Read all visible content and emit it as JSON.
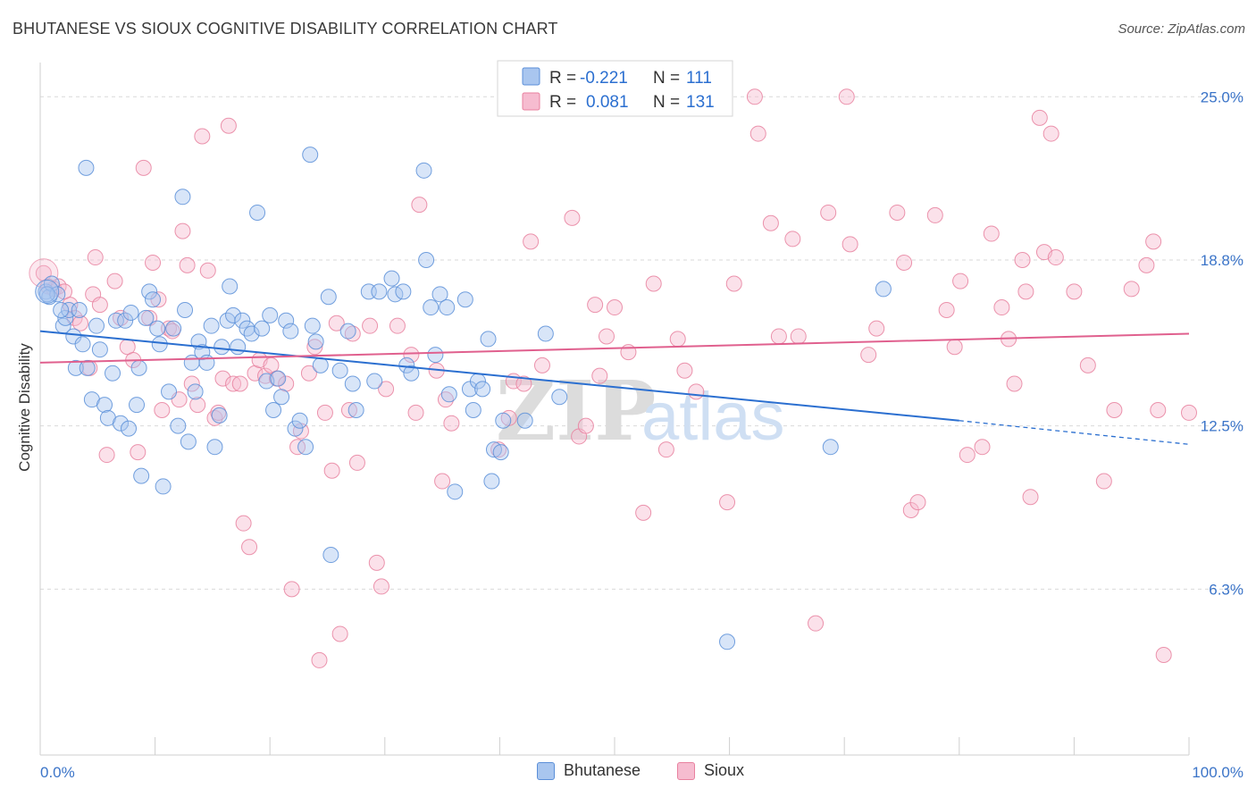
{
  "header": {
    "title": "BHUTANESE VS SIOUX COGNITIVE DISABILITY CORRELATION CHART",
    "source": "Source: ZipAtlas.com"
  },
  "legend": {
    "rows": [
      {
        "r_label": "R =",
        "r_value": "-0.221",
        "n_label": "N =",
        "n_value": "111"
      },
      {
        "r_label": "R =",
        "r_value": "0.081",
        "n_label": "N =",
        "n_value": "131"
      }
    ]
  },
  "watermark": {
    "part1": "ZIP",
    "part2": "atlas"
  },
  "colors": {
    "blue_fill": "#a9c6ef",
    "blue_stroke": "#5b8fd8",
    "blue_line": "#2b6fd0",
    "pink_fill": "#f6bcd0",
    "pink_stroke": "#e8819f",
    "pink_line": "#e0608e",
    "tick_text": "#3b74c8",
    "grid": "#d9d9d9"
  },
  "chart_data": {
    "type": "scatter",
    "title": "BHUTANESE VS SIOUX COGNITIVE DISABILITY CORRELATION CHART",
    "xlabel": "",
    "ylabel": "Cognitive Disability",
    "xlim": [
      0,
      100
    ],
    "ylim": [
      0,
      26.3
    ],
    "x_tick_labels": [
      "0.0%",
      "100.0%"
    ],
    "y_ticks": [
      {
        "value": 6.3,
        "label": "6.3%"
      },
      {
        "value": 12.5,
        "label": "12.5%"
      },
      {
        "value": 18.8,
        "label": "18.8%"
      },
      {
        "value": 25.0,
        "label": "25.0%"
      }
    ],
    "grid": "horizontal dashed",
    "legend_position": "top-center",
    "series": [
      {
        "name": "Bhutanese",
        "color": "#5b8fd8",
        "r": -0.221,
        "n": 111,
        "trend": {
          "x0": 0,
          "y0": 16.1,
          "x1": 80,
          "y1": 12.7,
          "dashed_to_x": 100,
          "dashed_to_y": 11.8
        },
        "points": [
          [
            0.5,
            17.6
          ],
          [
            0.8,
            17.4
          ],
          [
            1.0,
            17.9
          ],
          [
            1.5,
            17.5
          ],
          [
            2.0,
            16.3
          ],
          [
            2.2,
            16.6
          ],
          [
            2.5,
            16.9
          ],
          [
            2.9,
            15.9
          ],
          [
            3.1,
            14.7
          ],
          [
            3.4,
            16.9
          ],
          [
            3.7,
            15.6
          ],
          [
            4.1,
            14.7
          ],
          [
            4.5,
            13.5
          ],
          [
            4.9,
            16.3
          ],
          [
            5.2,
            15.4
          ],
          [
            5.6,
            13.3
          ],
          [
            5.9,
            12.8
          ],
          [
            6.3,
            14.5
          ],
          [
            6.6,
            16.5
          ],
          [
            7.0,
            12.6
          ],
          [
            7.4,
            16.5
          ],
          [
            7.7,
            12.4
          ],
          [
            7.9,
            16.8
          ],
          [
            8.4,
            13.3
          ],
          [
            8.6,
            14.7
          ],
          [
            8.8,
            10.6
          ],
          [
            9.2,
            16.6
          ],
          [
            9.5,
            17.6
          ],
          [
            9.8,
            17.3
          ],
          [
            10.2,
            16.2
          ],
          [
            10.4,
            15.6
          ],
          [
            10.7,
            10.2
          ],
          [
            11.2,
            13.8
          ],
          [
            11.6,
            16.2
          ],
          [
            12.0,
            12.5
          ],
          [
            12.4,
            21.2
          ],
          [
            12.6,
            16.9
          ],
          [
            12.9,
            11.9
          ],
          [
            13.2,
            14.9
          ],
          [
            13.5,
            13.8
          ],
          [
            13.8,
            15.7
          ],
          [
            14.1,
            15.3
          ],
          [
            14.5,
            14.9
          ],
          [
            14.9,
            16.3
          ],
          [
            15.2,
            11.7
          ],
          [
            15.6,
            12.9
          ],
          [
            15.8,
            15.5
          ],
          [
            16.3,
            16.5
          ],
          [
            16.5,
            17.8
          ],
          [
            16.8,
            16.7
          ],
          [
            17.2,
            15.5
          ],
          [
            17.6,
            16.5
          ],
          [
            18.0,
            16.2
          ],
          [
            18.4,
            16.0
          ],
          [
            18.9,
            20.6
          ],
          [
            19.3,
            16.2
          ],
          [
            19.7,
            14.2
          ],
          [
            20.0,
            16.7
          ],
          [
            20.3,
            13.1
          ],
          [
            20.7,
            14.3
          ],
          [
            21.0,
            13.6
          ],
          [
            21.4,
            16.5
          ],
          [
            21.8,
            16.1
          ],
          [
            22.2,
            12.4
          ],
          [
            22.6,
            12.7
          ],
          [
            23.1,
            11.7
          ],
          [
            23.5,
            22.8
          ],
          [
            23.7,
            16.3
          ],
          [
            24.0,
            15.7
          ],
          [
            24.4,
            14.8
          ],
          [
            25.1,
            17.4
          ],
          [
            25.3,
            7.6
          ],
          [
            26.1,
            14.6
          ],
          [
            26.8,
            16.1
          ],
          [
            27.2,
            14.1
          ],
          [
            27.5,
            13.1
          ],
          [
            28.6,
            17.6
          ],
          [
            29.1,
            14.2
          ],
          [
            29.5,
            17.6
          ],
          [
            30.6,
            18.1
          ],
          [
            30.9,
            17.5
          ],
          [
            31.6,
            17.6
          ],
          [
            31.9,
            14.8
          ],
          [
            32.3,
            14.5
          ],
          [
            33.4,
            22.2
          ],
          [
            33.6,
            18.8
          ],
          [
            34.0,
            17.0
          ],
          [
            34.4,
            15.2
          ],
          [
            34.8,
            17.5
          ],
          [
            35.4,
            17.0
          ],
          [
            35.6,
            13.7
          ],
          [
            36.1,
            10.0
          ],
          [
            37.0,
            17.3
          ],
          [
            37.4,
            13.9
          ],
          [
            37.7,
            13.1
          ],
          [
            38.1,
            14.2
          ],
          [
            38.5,
            13.9
          ],
          [
            39.0,
            15.8
          ],
          [
            39.3,
            10.4
          ],
          [
            39.5,
            11.6
          ],
          [
            40.1,
            11.5
          ],
          [
            40.3,
            12.7
          ],
          [
            42.2,
            12.7
          ],
          [
            44.0,
            16.0
          ],
          [
            45.2,
            13.6
          ],
          [
            59.8,
            4.3
          ],
          [
            68.8,
            11.7
          ],
          [
            73.4,
            17.7
          ],
          [
            4.0,
            22.3
          ],
          [
            0.6,
            17.5
          ],
          [
            1.8,
            16.9
          ]
        ]
      },
      {
        "name": "Sioux",
        "color": "#e8819f",
        "r": 0.081,
        "n": 131,
        "trend": {
          "x0": 0,
          "y0": 14.9,
          "x1": 100,
          "y1": 16.0
        },
        "points": [
          [
            0.3,
            18.3
          ],
          [
            0.7,
            17.8
          ],
          [
            1.2,
            17.7
          ],
          [
            1.6,
            17.8
          ],
          [
            2.1,
            17.6
          ],
          [
            2.6,
            17.1
          ],
          [
            3.0,
            16.6
          ],
          [
            3.5,
            16.4
          ],
          [
            4.3,
            14.7
          ],
          [
            4.6,
            17.5
          ],
          [
            5.2,
            17.1
          ],
          [
            5.8,
            11.4
          ],
          [
            6.5,
            18.0
          ],
          [
            7.0,
            16.6
          ],
          [
            7.6,
            15.5
          ],
          [
            8.1,
            15.0
          ],
          [
            8.5,
            11.5
          ],
          [
            9.0,
            22.3
          ],
          [
            9.5,
            16.6
          ],
          [
            9.8,
            18.7
          ],
          [
            10.3,
            17.3
          ],
          [
            10.6,
            13.1
          ],
          [
            11.2,
            16.2
          ],
          [
            11.5,
            16.1
          ],
          [
            12.1,
            13.5
          ],
          [
            12.4,
            19.9
          ],
          [
            12.8,
            18.6
          ],
          [
            13.2,
            14.1
          ],
          [
            13.7,
            13.3
          ],
          [
            14.1,
            23.5
          ],
          [
            14.6,
            18.4
          ],
          [
            15.2,
            12.8
          ],
          [
            15.5,
            13.0
          ],
          [
            15.9,
            14.3
          ],
          [
            16.4,
            23.9
          ],
          [
            16.8,
            14.1
          ],
          [
            17.4,
            14.1
          ],
          [
            17.7,
            8.8
          ],
          [
            18.2,
            7.9
          ],
          [
            18.7,
            14.5
          ],
          [
            19.1,
            15.0
          ],
          [
            19.6,
            14.4
          ],
          [
            20.1,
            14.8
          ],
          [
            20.6,
            14.3
          ],
          [
            21.4,
            14.1
          ],
          [
            21.9,
            6.3
          ],
          [
            22.4,
            11.7
          ],
          [
            22.7,
            12.3
          ],
          [
            23.4,
            14.5
          ],
          [
            23.9,
            15.5
          ],
          [
            24.3,
            3.6
          ],
          [
            24.8,
            13.0
          ],
          [
            25.4,
            10.8
          ],
          [
            25.8,
            16.4
          ],
          [
            26.1,
            4.6
          ],
          [
            26.9,
            13.1
          ],
          [
            27.2,
            16.0
          ],
          [
            27.6,
            11.1
          ],
          [
            28.7,
            16.3
          ],
          [
            29.3,
            7.3
          ],
          [
            29.7,
            6.4
          ],
          [
            30.1,
            13.9
          ],
          [
            31.1,
            16.3
          ],
          [
            32.3,
            15.2
          ],
          [
            32.7,
            13.0
          ],
          [
            33.0,
            20.9
          ],
          [
            34.5,
            14.6
          ],
          [
            35.0,
            10.4
          ],
          [
            35.3,
            13.5
          ],
          [
            35.8,
            12.6
          ],
          [
            39.9,
            11.6
          ],
          [
            40.8,
            12.8
          ],
          [
            41.2,
            14.2
          ],
          [
            42.1,
            14.1
          ],
          [
            42.7,
            19.5
          ],
          [
            43.7,
            14.8
          ],
          [
            46.3,
            20.4
          ],
          [
            46.9,
            12.1
          ],
          [
            47.5,
            12.5
          ],
          [
            48.3,
            17.1
          ],
          [
            48.7,
            14.4
          ],
          [
            49.3,
            15.9
          ],
          [
            50.0,
            17.0
          ],
          [
            51.2,
            15.3
          ],
          [
            52.5,
            9.2
          ],
          [
            53.4,
            17.9
          ],
          [
            54.5,
            11.6
          ],
          [
            55.5,
            15.8
          ],
          [
            56.1,
            14.6
          ],
          [
            57.1,
            13.8
          ],
          [
            59.8,
            9.6
          ],
          [
            60.4,
            17.9
          ],
          [
            62.2,
            25.0
          ],
          [
            62.5,
            23.6
          ],
          [
            63.6,
            20.2
          ],
          [
            64.3,
            15.9
          ],
          [
            65.5,
            19.6
          ],
          [
            66.0,
            15.9
          ],
          [
            67.5,
            5.0
          ],
          [
            68.6,
            20.6
          ],
          [
            70.2,
            25.0
          ],
          [
            70.5,
            19.4
          ],
          [
            72.1,
            15.2
          ],
          [
            72.8,
            16.2
          ],
          [
            74.6,
            20.6
          ],
          [
            75.2,
            18.7
          ],
          [
            75.8,
            9.3
          ],
          [
            76.4,
            9.6
          ],
          [
            77.9,
            20.5
          ],
          [
            78.9,
            16.9
          ],
          [
            79.6,
            15.5
          ],
          [
            80.1,
            18.0
          ],
          [
            80.7,
            11.4
          ],
          [
            82.0,
            11.7
          ],
          [
            82.8,
            19.8
          ],
          [
            83.7,
            17.0
          ],
          [
            84.3,
            15.8
          ],
          [
            84.8,
            14.1
          ],
          [
            85.5,
            18.8
          ],
          [
            85.8,
            17.6
          ],
          [
            86.2,
            9.8
          ],
          [
            87.0,
            24.2
          ],
          [
            87.4,
            19.1
          ],
          [
            88.4,
            18.9
          ],
          [
            90.0,
            17.6
          ],
          [
            91.2,
            14.8
          ],
          [
            92.6,
            10.4
          ],
          [
            93.5,
            13.1
          ],
          [
            95.0,
            17.7
          ],
          [
            96.3,
            18.6
          ],
          [
            96.9,
            19.5
          ],
          [
            97.3,
            13.1
          ],
          [
            97.8,
            3.8
          ],
          [
            100.0,
            13.0
          ],
          [
            88.0,
            23.6
          ],
          [
            4.8,
            18.9
          ]
        ]
      }
    ]
  },
  "bottom_legend": {
    "items": [
      "Bhutanese",
      "Sioux"
    ]
  }
}
